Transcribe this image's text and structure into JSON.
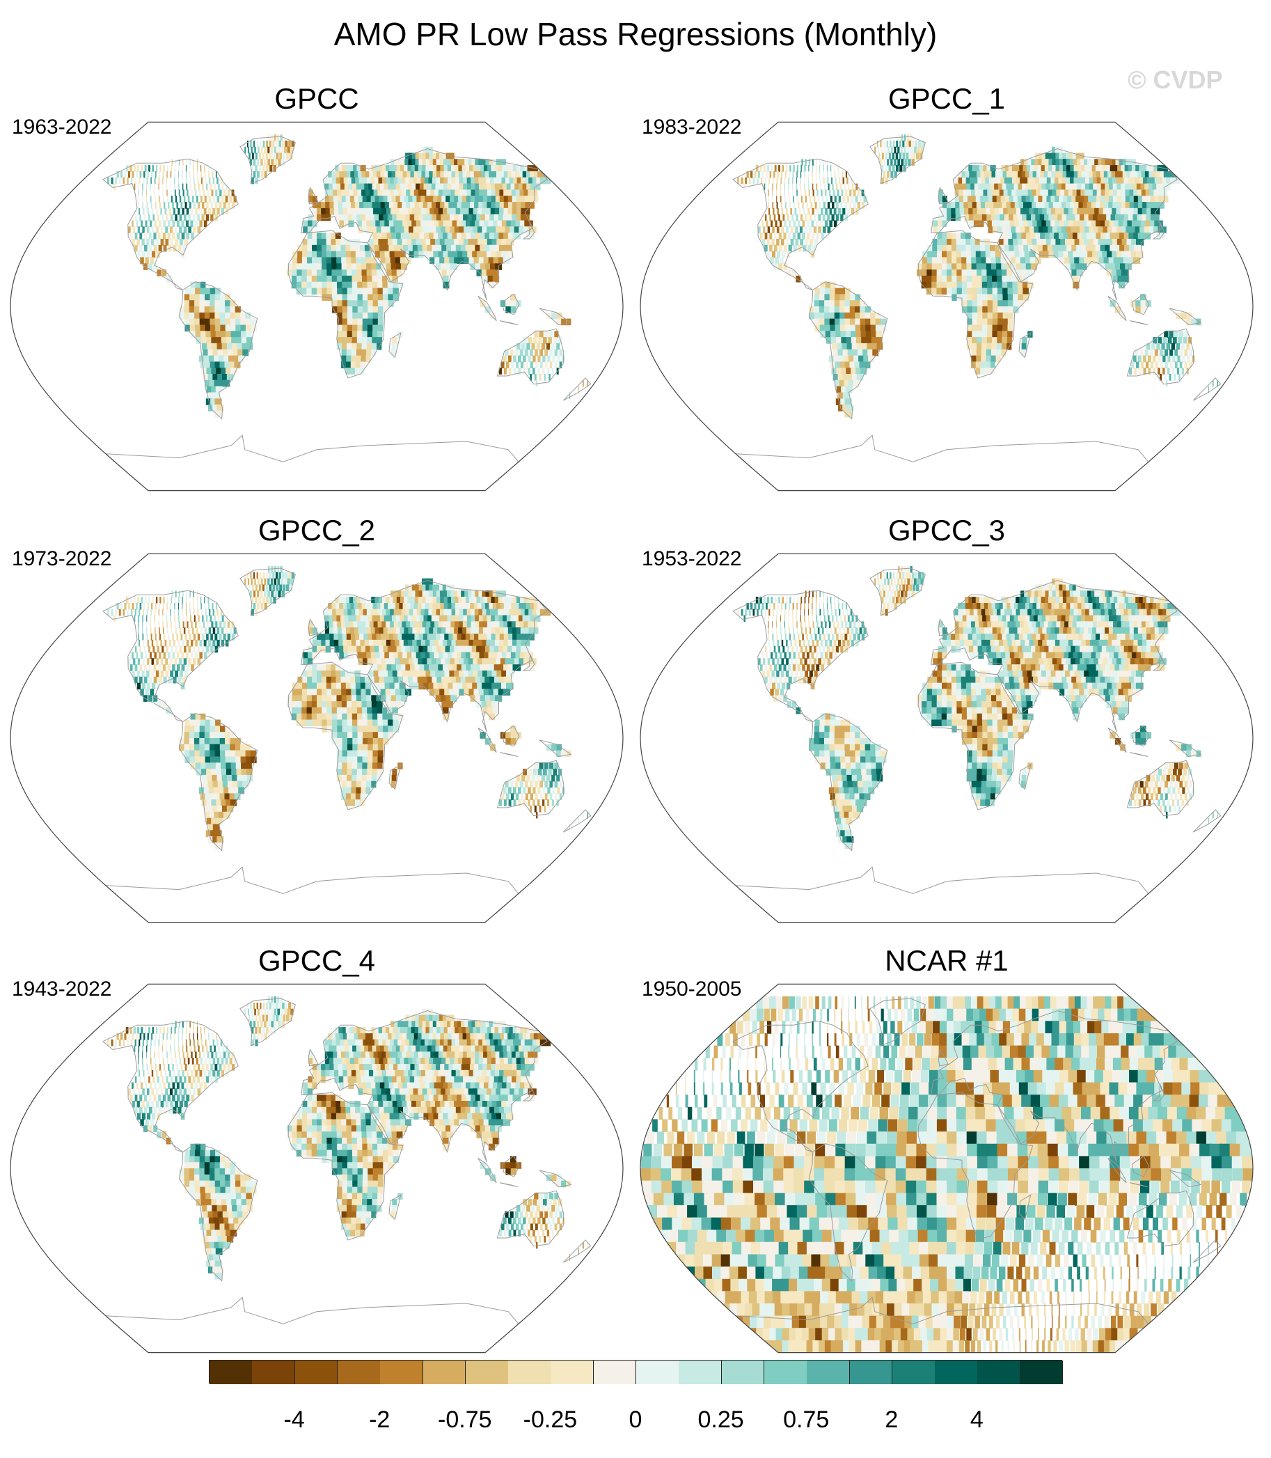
{
  "title": "AMO PR Low Pass Regressions (Monthly)",
  "watermark": "© CVDP",
  "panels": [
    {
      "name": "GPCC",
      "period": "1963-2022",
      "coverage": "land",
      "seed": 11
    },
    {
      "name": "GPCC_1",
      "period": "1983-2022",
      "coverage": "land",
      "seed": 23
    },
    {
      "name": "GPCC_2",
      "period": "1973-2022",
      "coverage": "land",
      "seed": 37
    },
    {
      "name": "GPCC_3",
      "period": "1953-2022",
      "coverage": "land",
      "seed": 41
    },
    {
      "name": "GPCC_4",
      "period": "1943-2022",
      "coverage": "land",
      "seed": 53
    },
    {
      "name": "NCAR #1",
      "period": "1950-2005",
      "coverage": "global",
      "seed": 67
    }
  ],
  "colorbar": {
    "colors": [
      "#543005",
      "#7a4308",
      "#8c510a",
      "#a76a1d",
      "#bf812d",
      "#d6ad60",
      "#dfc27d",
      "#f0dfb1",
      "#f6e8c3",
      "#f5f1e8",
      "#e6f4f1",
      "#c7eae5",
      "#a6dcd3",
      "#80cdc1",
      "#5ab4ac",
      "#35978f",
      "#1b8176",
      "#01665e",
      "#01544a",
      "#003c30"
    ],
    "labels": [
      {
        "text": "-4",
        "boundary": 2
      },
      {
        "text": "-2",
        "boundary": 4
      },
      {
        "text": "-0.75",
        "boundary": 6
      },
      {
        "text": "-0.25",
        "boundary": 8
      },
      {
        "text": "0",
        "boundary": 10
      },
      {
        "text": "0.25",
        "boundary": 12
      },
      {
        "text": "0.75",
        "boundary": 14
      },
      {
        "text": "2",
        "boundary": 16
      },
      {
        "text": "4",
        "boundary": 18
      }
    ]
  }
}
